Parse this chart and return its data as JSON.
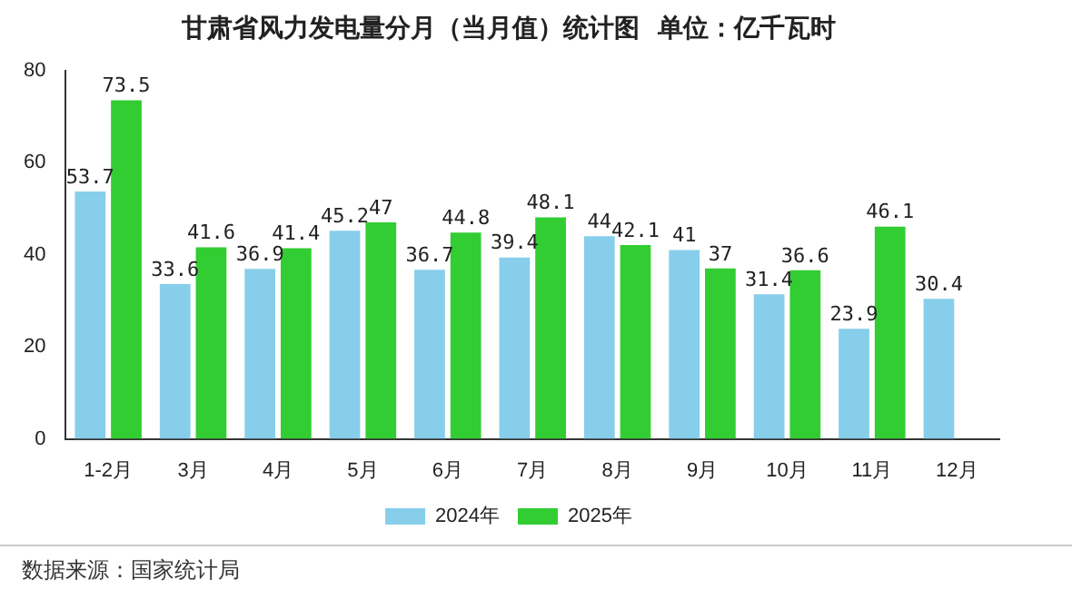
{
  "chart_data": {
    "type": "bar",
    "title": "甘肃省风力发电量分月（当月值）统计图  单位：亿千瓦时",
    "categories": [
      "1-2月",
      "3月",
      "4月",
      "5月",
      "6月",
      "7月",
      "8月",
      "9月",
      "10月",
      "11月",
      "12月"
    ],
    "series": [
      {
        "name": "2024年",
        "color": "#87ceeb",
        "values": [
          53.7,
          33.6,
          36.9,
          45.2,
          36.7,
          39.4,
          44,
          41,
          31.4,
          23.9,
          30.4
        ]
      },
      {
        "name": "2025年",
        "color": "#32cd32",
        "values": [
          73.5,
          41.6,
          41.4,
          47,
          44.8,
          48.1,
          42.1,
          37,
          36.6,
          46.1,
          null
        ]
      }
    ],
    "ylim": [
      0,
      80
    ],
    "yticks": [
      0,
      20,
      40,
      60,
      80
    ],
    "grid": false,
    "legend": "bottom",
    "data_labels": true,
    "annotations": [
      "数据来源：国家统计局"
    ]
  }
}
